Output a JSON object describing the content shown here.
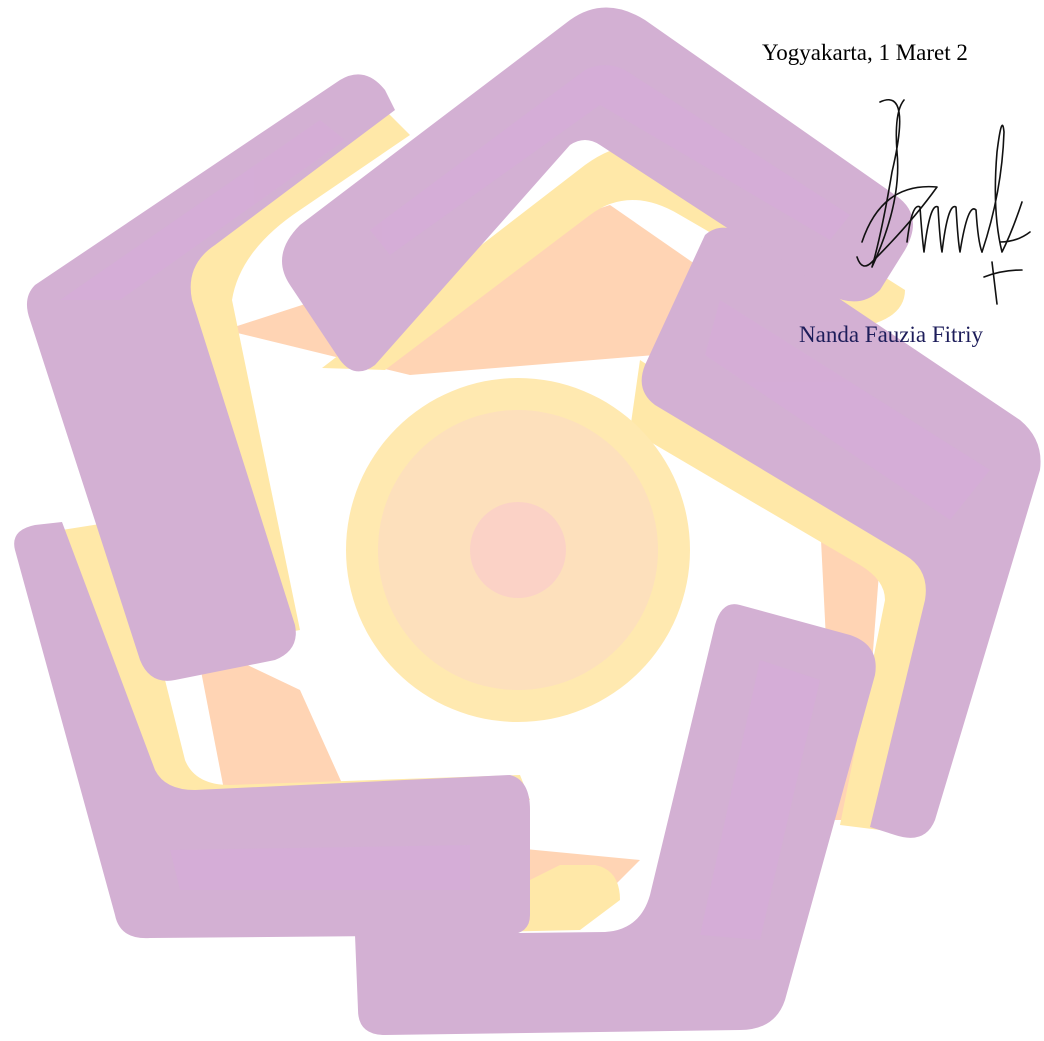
{
  "document": {
    "place_date": "Yogyakarta, 1 Maret 2",
    "signer_name": "Nanda Fauzia Fitriy"
  },
  "watermark": {
    "icon": "university-logo-watermark-icon",
    "colors": {
      "purple": "#d3b0d3",
      "purple_inner": "#d8addb",
      "yellow": "#ffe8a8",
      "yellow_inner": "#ffe2b2",
      "peach": "#ffd2b0",
      "center": "#fbd3c2"
    }
  },
  "signature": {
    "icon": "handwritten-signature-icon",
    "color": "#111111"
  }
}
